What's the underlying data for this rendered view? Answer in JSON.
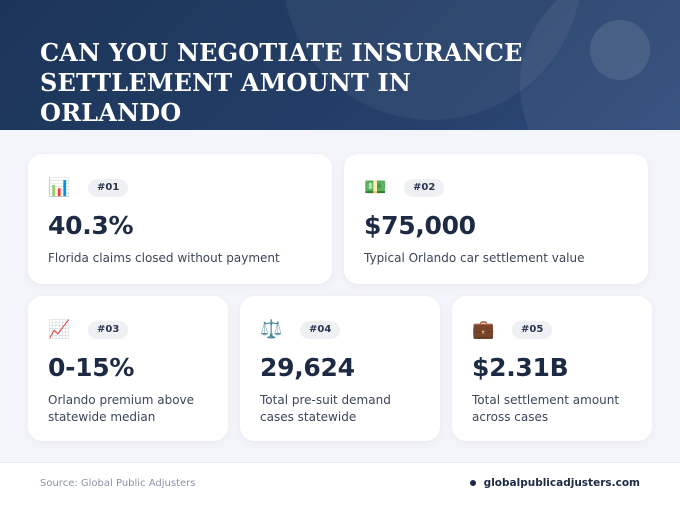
{
  "header": {
    "title": "Can You Negotiate Insurance Settlement Amount in Orlando"
  },
  "stats": [
    {
      "emoji": "📊",
      "badge": "#01",
      "value": "40.3%",
      "desc": "Florida claims closed without payment"
    },
    {
      "emoji": "💵",
      "badge": "#02",
      "value": "$75,000",
      "desc": "Typical Orlando car settlement value"
    },
    {
      "emoji": "📈",
      "badge": "#03",
      "value": "0-15%",
      "desc": "Orlando premium above statewide median"
    },
    {
      "emoji": "⚖️",
      "badge": "#04",
      "value": "29,624",
      "desc": "Total pre-suit demand cases statewide"
    },
    {
      "emoji": "💼",
      "badge": "#05",
      "value": "$2.31B",
      "desc": "Total settlement amount across cases"
    }
  ],
  "footer": {
    "source": "Source: Global Public Adjusters",
    "website": "globalpublicadjusters.com"
  }
}
